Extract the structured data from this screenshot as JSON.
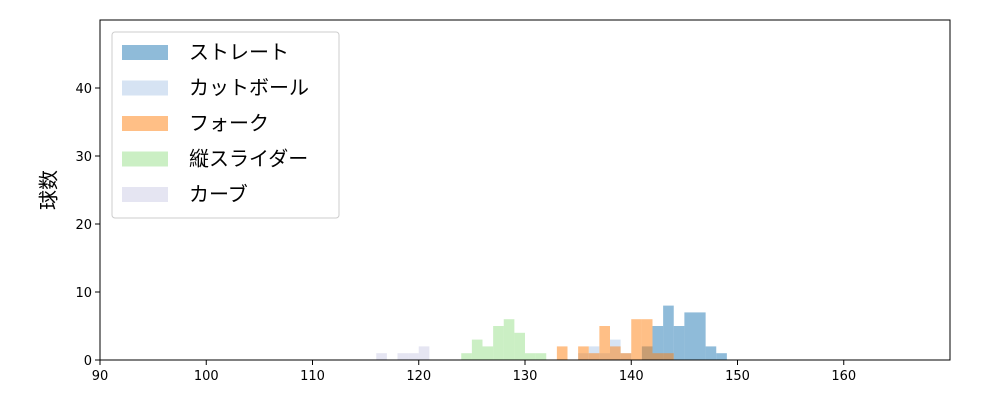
{
  "chart_data": {
    "type": "histogram",
    "ylabel": "球数",
    "xlim": [
      90,
      170
    ],
    "ylim": [
      0,
      50
    ],
    "xticks": [
      90,
      100,
      110,
      120,
      130,
      140,
      150,
      160
    ],
    "yticks": [
      0,
      10,
      20,
      30,
      40
    ],
    "legend": "upper left",
    "opacity": 0.5,
    "series": [
      {
        "name": "ストレート",
        "color": "#1f77b4",
        "bins": [
          141,
          142,
          143,
          144,
          145,
          146,
          147,
          148,
          149
        ],
        "values": [
          2,
          5,
          8,
          5,
          7,
          7,
          2,
          1
        ]
      },
      {
        "name": "カットボール",
        "color": "#aec7e8",
        "bins": [
          135,
          136,
          137,
          138,
          139,
          140
        ],
        "values": [
          1,
          2,
          1,
          3,
          1
        ]
      },
      {
        "name": "フォーク",
        "color": "#ff7f0e",
        "bins": [
          133,
          134,
          135,
          136,
          137,
          138,
          139,
          140,
          141,
          142,
          143,
          144
        ],
        "values": [
          2,
          0,
          2,
          1,
          5,
          2,
          1,
          6,
          6,
          1,
          1
        ]
      },
      {
        "name": "縦スライダー",
        "color": "#98df8a",
        "bins": [
          124,
          125,
          126,
          127,
          128,
          129,
          130,
          131,
          132
        ],
        "values": [
          1,
          3,
          2,
          5,
          6,
          4,
          1,
          1
        ]
      },
      {
        "name": "カーブ",
        "color": "#cbcbe5",
        "bins": [
          116,
          117,
          118,
          119,
          120,
          121
        ],
        "values": [
          1,
          0,
          1,
          1,
          2
        ]
      }
    ]
  }
}
